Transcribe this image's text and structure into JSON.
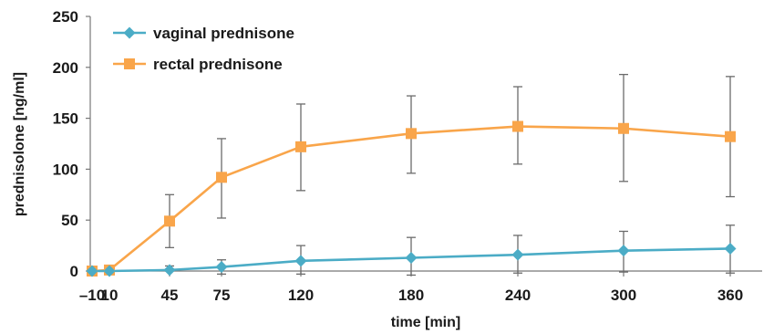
{
  "chart_data": {
    "type": "line",
    "xlabel": "time [min]",
    "ylabel": "prednisolone [ng/ml]",
    "x_tick_labels": [
      "–10",
      "10",
      "45",
      "75",
      "120",
      "180",
      "240",
      "300",
      "360"
    ],
    "y_ticks": [
      0,
      50,
      100,
      150,
      200,
      250
    ],
    "ylim": [
      0,
      250
    ],
    "grid": false,
    "legend_position": "top-left",
    "series": [
      {
        "name": "vaginal prednisone",
        "color": "#4bacc6",
        "marker": "diamond",
        "x": [
          "–10",
          "10",
          "45",
          "75",
          "120",
          "180",
          "240",
          "300",
          "360"
        ],
        "values": [
          0,
          0,
          1,
          4,
          10,
          13,
          16,
          20,
          22
        ],
        "error_low": [
          0,
          0,
          0,
          -3,
          -3,
          -4,
          -2,
          -1,
          -2
        ],
        "error_high": [
          0,
          0,
          5,
          11,
          25,
          33,
          35,
          39,
          45
        ]
      },
      {
        "name": "rectal prednisone",
        "color": "#f9a54a",
        "marker": "square",
        "x": [
          "–10",
          "10",
          "45",
          "75",
          "120",
          "180",
          "240",
          "300",
          "360"
        ],
        "values": [
          0,
          1,
          49,
          92,
          122,
          135,
          142,
          140,
          132
        ],
        "error_low": [
          0,
          0,
          23,
          52,
          79,
          96,
          105,
          88,
          73
        ],
        "error_high": [
          0,
          0,
          75,
          130,
          164,
          172,
          181,
          193,
          191
        ]
      }
    ]
  }
}
